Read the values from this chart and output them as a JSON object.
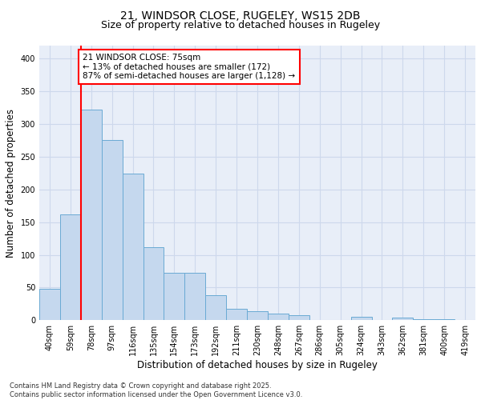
{
  "title_line1": "21, WINDSOR CLOSE, RUGELEY, WS15 2DB",
  "title_line2": "Size of property relative to detached houses in Rugeley",
  "xlabel": "Distribution of detached houses by size in Rugeley",
  "ylabel": "Number of detached properties",
  "categories": [
    "40sqm",
    "59sqm",
    "78sqm",
    "97sqm",
    "116sqm",
    "135sqm",
    "154sqm",
    "173sqm",
    "192sqm",
    "211sqm",
    "230sqm",
    "248sqm",
    "267sqm",
    "286sqm",
    "305sqm",
    "324sqm",
    "343sqm",
    "362sqm",
    "381sqm",
    "400sqm",
    "419sqm"
  ],
  "values": [
    48,
    162,
    322,
    275,
    224,
    112,
    72,
    72,
    38,
    17,
    14,
    10,
    8,
    0,
    0,
    5,
    0,
    4,
    2,
    2,
    0
  ],
  "bar_color": "#c5d8ee",
  "bar_edgecolor": "#6aaad4",
  "vline_color": "red",
  "annotation_text": "21 WINDSOR CLOSE: 75sqm\n← 13% of detached houses are smaller (172)\n87% of semi-detached houses are larger (1,128) →",
  "annotation_box_color": "white",
  "annotation_box_edgecolor": "red",
  "ylim": [
    0,
    420
  ],
  "yticks": [
    0,
    50,
    100,
    150,
    200,
    250,
    300,
    350,
    400
  ],
  "grid_color": "#cdd8ec",
  "background_color": "#e8eef8",
  "footer_text": "Contains HM Land Registry data © Crown copyright and database right 2025.\nContains public sector information licensed under the Open Government Licence v3.0.",
  "title_fontsize": 10,
  "subtitle_fontsize": 9,
  "axis_label_fontsize": 8.5,
  "tick_fontsize": 7,
  "annotation_fontsize": 7.5,
  "footer_fontsize": 6
}
